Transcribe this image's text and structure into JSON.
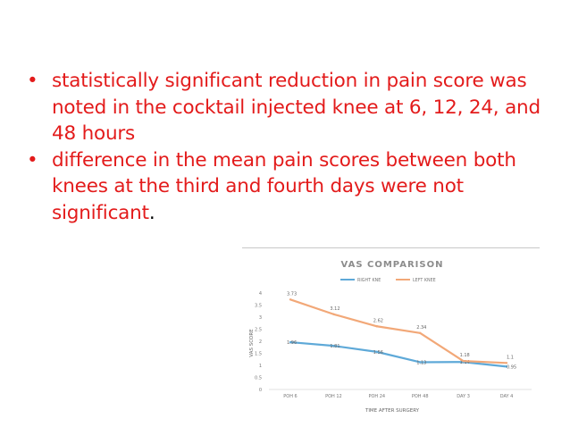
{
  "bullets": [
    {
      "text": "statistically significant reduction in pain score was noted in the cocktail injected knee at 6, 12, 24, and 48 hours",
      "suffix": ""
    },
    {
      "text": "difference in the mean pain scores between both knees at the third and fourth days were not significant",
      "suffix": "."
    }
  ],
  "bullet_color": "#e31b1b",
  "chart_data": {
    "type": "line",
    "title": "VAS COMPARISON",
    "xlabel": "TIME AFTER SURGERY",
    "ylabel": "VAS SCORE",
    "categories": [
      "POH 6",
      "POH 12",
      "POH 24",
      "POH 48",
      "DAY 3",
      "DAY 4"
    ],
    "ylim": [
      0,
      4
    ],
    "yticks": [
      "0",
      "0.5",
      "1",
      "1.5",
      "2",
      "2.5",
      "3",
      "3.5",
      "4"
    ],
    "legend_position": "top",
    "grid": false,
    "series": [
      {
        "name": "RIGHT KNE",
        "color": "#5ea9d8",
        "values": [
          1.96,
          1.81,
          1.56,
          1.13,
          1.14,
          0.95
        ],
        "labels": [
          "1.96",
          "1.81",
          "1.56",
          "1.13",
          "1.14",
          "0.95"
        ]
      },
      {
        "name": "LEFT KNEE",
        "color": "#f2a878",
        "values": [
          3.73,
          3.12,
          2.62,
          2.34,
          1.18,
          1.1
        ],
        "labels": [
          "3.73",
          "3.12",
          "2.62",
          "2.34",
          "1.18",
          "1.1"
        ]
      }
    ]
  }
}
